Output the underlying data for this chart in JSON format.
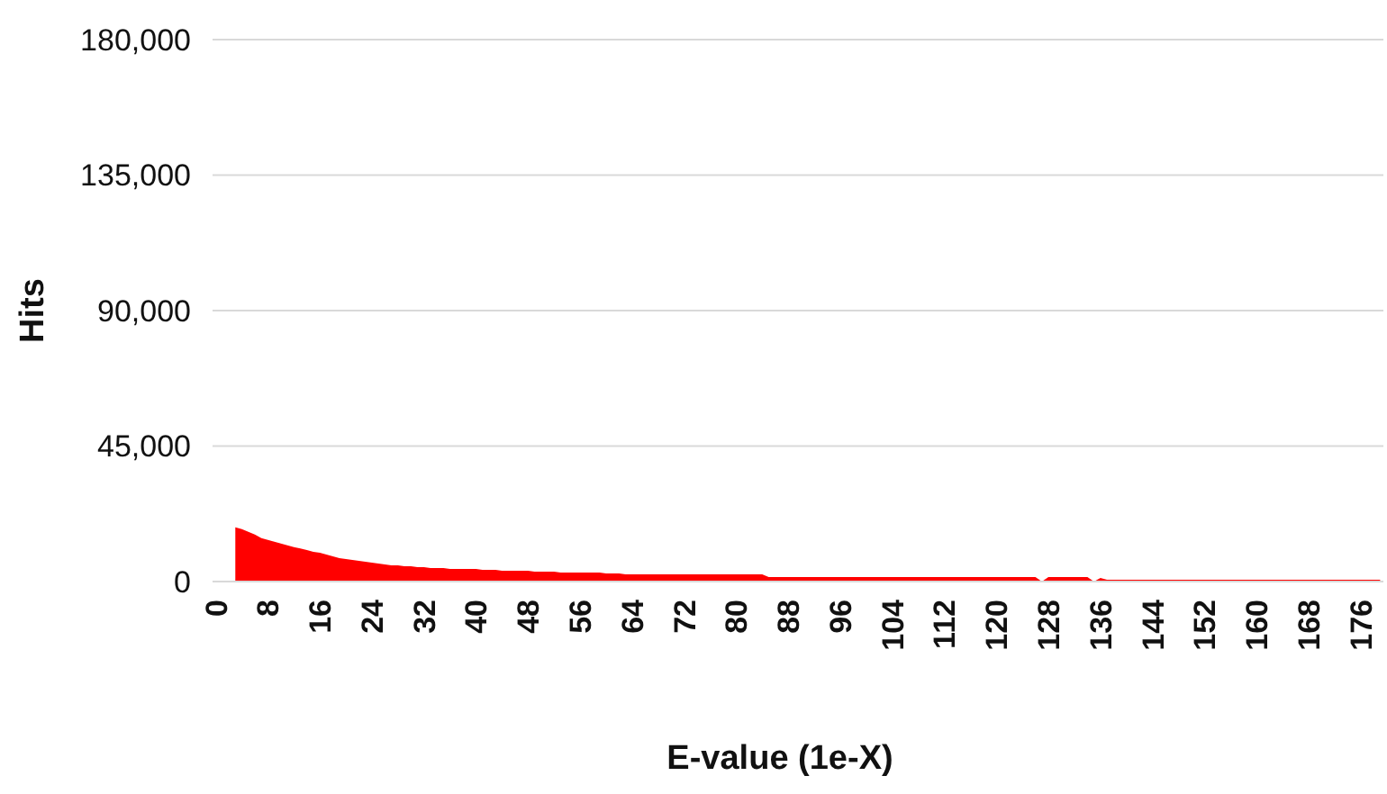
{
  "chart_data": {
    "type": "area",
    "xlabel": "E-value (1e-X)",
    "ylabel": "Hits",
    "categories": [
      "0",
      null,
      null,
      null,
      null,
      null,
      null,
      null,
      "8",
      null,
      null,
      null,
      null,
      null,
      null,
      null,
      "16",
      null,
      null,
      null,
      null,
      null,
      null,
      null,
      "24",
      null,
      null,
      null,
      null,
      null,
      null,
      null,
      "32",
      null,
      null,
      null,
      null,
      null,
      null,
      null,
      "40",
      null,
      null,
      null,
      null,
      null,
      null,
      null,
      "48",
      null,
      null,
      null,
      null,
      null,
      null,
      null,
      "56",
      null,
      null,
      null,
      null,
      null,
      null,
      null,
      "64",
      null,
      null,
      null,
      null,
      null,
      null,
      null,
      "72",
      null,
      null,
      null,
      null,
      null,
      null,
      null,
      "80",
      null,
      null,
      null,
      null,
      null,
      null,
      null,
      "88",
      null,
      null,
      null,
      null,
      null,
      null,
      null,
      "96",
      null,
      null,
      null,
      null,
      null,
      null,
      null,
      "104",
      null,
      null,
      null,
      null,
      null,
      null,
      null,
      "112",
      null,
      null,
      null,
      null,
      null,
      null,
      null,
      "120",
      null,
      null,
      null,
      null,
      null,
      null,
      null,
      "128",
      null,
      null,
      null,
      null,
      null,
      null,
      null,
      "136",
      null,
      null,
      null,
      null,
      null,
      null,
      null,
      "144",
      null,
      null,
      null,
      null,
      null,
      null,
      null,
      "152",
      null,
      null,
      null,
      null,
      null,
      null,
      null,
      "160",
      null,
      null,
      null,
      null,
      null,
      null,
      null,
      "168",
      null,
      null,
      null,
      null,
      null,
      null,
      null,
      "176",
      null,
      null,
      null
    ],
    "values": [
      null,
      null,
      null,
      18000,
      17400,
      16500,
      15600,
      14400,
      13800,
      13200,
      12600,
      12000,
      11400,
      11000,
      10500,
      9900,
      9600,
      9000,
      8400,
      7800,
      7500,
      7200,
      6900,
      6600,
      6300,
      6000,
      5700,
      5400,
      5400,
      5100,
      5100,
      4800,
      4800,
      4500,
      4500,
      4500,
      4200,
      4200,
      4200,
      4200,
      4200,
      3900,
      3900,
      3900,
      3600,
      3600,
      3600,
      3600,
      3600,
      3300,
      3300,
      3300,
      3300,
      3000,
      3000,
      3000,
      3000,
      3000,
      3000,
      3000,
      2700,
      2700,
      2700,
      2400,
      2400,
      2400,
      2400,
      2400,
      2400,
      2400,
      2400,
      2400,
      2400,
      2400,
      2400,
      2400,
      2400,
      2400,
      2400,
      2400,
      2400,
      2400,
      2400,
      2400,
      2400,
      1500,
      1500,
      1500,
      1500,
      1500,
      1500,
      1500,
      1500,
      1500,
      1500,
      1500,
      1500,
      1500,
      1500,
      1500,
      1500,
      1500,
      1500,
      1500,
      1500,
      1500,
      1500,
      1500,
      1500,
      1500,
      1500,
      1500,
      1500,
      1500,
      1500,
      1500,
      1500,
      1500,
      1500,
      1500,
      1500,
      1500,
      1500,
      1500,
      1500,
      1500,
      1500,
      0,
      1500,
      1500,
      1500,
      1500,
      1500,
      1500,
      1500,
      0,
      1200,
      600,
      600,
      600,
      600,
      600,
      600,
      600,
      600,
      600,
      600,
      600,
      600,
      600,
      600,
      600,
      600,
      600,
      600,
      600,
      600,
      600,
      600,
      600,
      600,
      600,
      600,
      600,
      600,
      600,
      600,
      600,
      600,
      600,
      600,
      600,
      600,
      600,
      600,
      600,
      600,
      600,
      600,
      600
    ],
    "color": "#ff0000",
    "ylim": [
      0,
      180000
    ],
    "yticks": [
      {
        "value": 0,
        "label": "0"
      },
      {
        "value": 45000,
        "label": "45,000"
      },
      {
        "value": 90000,
        "label": "90,000"
      },
      {
        "value": 135000,
        "label": "135,000"
      },
      {
        "value": 180000,
        "label": "180,000"
      }
    ],
    "grid": "y"
  }
}
